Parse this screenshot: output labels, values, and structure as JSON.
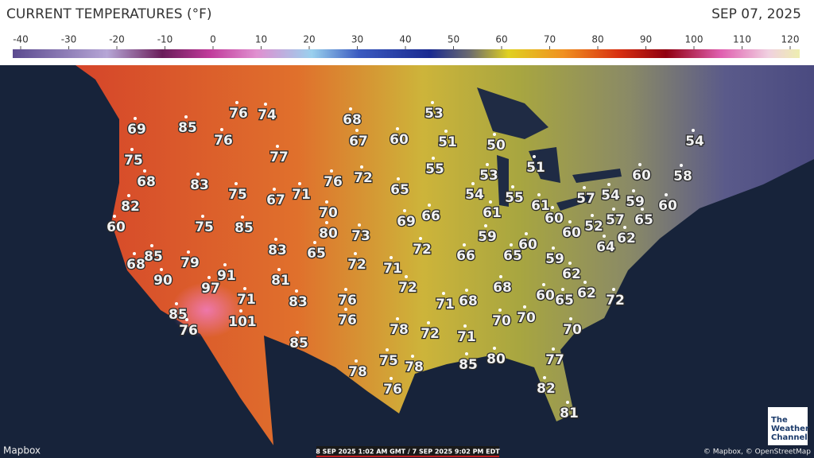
{
  "header": {
    "title": "CURRENT TEMPERATURES (°F)",
    "date": "SEP 07, 2025"
  },
  "legend": {
    "ticks": [
      -40,
      -30,
      -20,
      -10,
      0,
      10,
      20,
      30,
      40,
      50,
      60,
      70,
      80,
      90,
      100,
      110,
      120
    ]
  },
  "temperatures": [
    69,
    85,
    76,
    74,
    68,
    53,
    76,
    67,
    60,
    51,
    50,
    54,
    75,
    77,
    55,
    51,
    68,
    83,
    72,
    76,
    53,
    60,
    58,
    75,
    67,
    71,
    65,
    54,
    55,
    57,
    54,
    59,
    60,
    82,
    70,
    61,
    61,
    60,
    57,
    65,
    52,
    60,
    75,
    85,
    80,
    73,
    69,
    66,
    60,
    62,
    59,
    64,
    60,
    65,
    83,
    65,
    72,
    66,
    59,
    68,
    85,
    79,
    72,
    71,
    62,
    91,
    90,
    97,
    81,
    72,
    68,
    60,
    65,
    62,
    72,
    71,
    83,
    76,
    71,
    68,
    85,
    70,
    70,
    76,
    101,
    76,
    78,
    72,
    71,
    70,
    85,
    80,
    85,
    77,
    75,
    78,
    78,
    76,
    82,
    81
  ],
  "footer": {
    "source": "Mapbox",
    "timestamp": "8 SEP 2025 1:02 AM GMT / 7 SEP 2025 9:02 PM EDT",
    "credits": "© Mapbox, © OpenStreetMap",
    "logo": [
      "The",
      "Weather",
      "Channel"
    ]
  }
}
